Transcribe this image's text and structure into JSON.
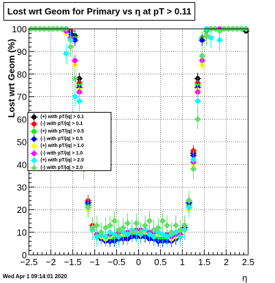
{
  "chart_data": {
    "type": "scatter",
    "title": "Lost wrt Geom for Primary vs η at pT > 0.11",
    "xlabel": "η",
    "ylabel": "Lost wrt Geom (%)",
    "xlim": [
      -2.5,
      2.5
    ],
    "ylim": [
      0,
      100
    ],
    "x_ticks": [
      "−2.5",
      "−2",
      "−1.5",
      "−1",
      "−0.5",
      "0",
      "0.5",
      "1",
      "1.5",
      "2",
      "2.5"
    ],
    "y_ticks": [
      "0",
      "10",
      "20",
      "30",
      "40",
      "50",
      "60",
      "70",
      "80",
      "90",
      "100"
    ],
    "grid": true,
    "legend_position": "middle-left",
    "eta": [
      -2.45,
      -2.35,
      -2.25,
      -2.15,
      -2.05,
      -1.95,
      -1.85,
      -1.75,
      -1.65,
      -1.55,
      -1.45,
      -1.35,
      -1.25,
      -1.15,
      -1.05,
      -0.95,
      -0.85,
      -0.75,
      -0.65,
      -0.55,
      -0.45,
      -0.35,
      -0.25,
      -0.15,
      -0.05,
      0.05,
      0.15,
      0.25,
      0.35,
      0.45,
      0.55,
      0.65,
      0.75,
      0.85,
      0.95,
      1.05,
      1.15,
      1.25,
      1.35,
      1.45,
      1.55,
      1.65,
      1.75,
      1.85,
      1.95,
      2.05,
      2.15,
      2.25,
      2.35,
      2.45
    ],
    "series": [
      {
        "name": "(+) with pT/|q| > 0.1",
        "color": "#000000",
        "marker": "circle",
        "values": [
          100,
          100,
          100,
          100,
          100,
          100,
          100,
          100,
          100,
          99,
          97,
          78,
          45,
          23,
          12,
          9,
          8,
          7,
          7,
          7,
          8,
          8,
          8,
          9,
          9,
          9,
          9,
          8,
          8,
          7,
          7,
          7,
          7,
          8,
          9,
          12,
          23,
          45,
          78,
          95,
          100,
          100,
          100,
          100,
          100,
          100,
          100,
          100,
          100,
          99
        ]
      },
      {
        "name": "(-) with pT/|q| > 0.1",
        "color": "#ff0000",
        "marker": "circle",
        "values": [
          100,
          100,
          100,
          100,
          100,
          100,
          100,
          100,
          100,
          99,
          96,
          76,
          46,
          24,
          13,
          9,
          8,
          7,
          7,
          7,
          8,
          8,
          8,
          9,
          9,
          9,
          9,
          8,
          8,
          7,
          7,
          7,
          7,
          8,
          9,
          13,
          24,
          46,
          76,
          96,
          100,
          100,
          100,
          100,
          100,
          100,
          100,
          100,
          100,
          100
        ]
      },
      {
        "name": "(+) with pT/|q| > 0.5",
        "color": "#00ee00",
        "marker": "circle",
        "values": [
          100,
          100,
          100,
          100,
          100,
          100,
          100,
          100,
          100,
          98,
          96,
          75,
          44,
          22,
          12,
          9,
          8,
          7,
          7,
          7,
          7,
          8,
          8,
          8,
          9,
          9,
          8,
          8,
          7,
          7,
          7,
          7,
          7,
          8,
          9,
          12,
          22,
          44,
          75,
          96,
          99,
          100,
          100,
          100,
          100,
          100,
          100,
          100,
          100,
          100
        ]
      },
      {
        "name": "(-) with pT/|q| > 0.5",
        "color": "#0000ff",
        "marker": "circle",
        "values": [
          100,
          100,
          100,
          100,
          100,
          100,
          100,
          100,
          100,
          98,
          95,
          74,
          44,
          23,
          12,
          8,
          7,
          6,
          6,
          6,
          7,
          7,
          7,
          8,
          8,
          8,
          8,
          7,
          7,
          6,
          6,
          6,
          6,
          7,
          8,
          12,
          23,
          44,
          74,
          95,
          100,
          100,
          100,
          100,
          100,
          100,
          100,
          100,
          100,
          100
        ]
      },
      {
        "name": "(+) with pT/|q| > 1.0",
        "color": "#ffff00",
        "marker": "circle",
        "values": [
          100,
          100,
          100,
          100,
          100,
          100,
          100,
          100,
          98,
          95,
          84,
          73,
          40,
          20,
          11,
          9,
          8,
          7,
          8,
          9,
          9,
          9,
          10,
          10,
          10,
          10,
          10,
          10,
          9,
          9,
          9,
          8,
          7,
          8,
          9,
          11,
          20,
          40,
          73,
          84,
          96,
          100,
          100,
          100,
          100,
          100,
          100,
          100,
          100,
          100
        ]
      },
      {
        "name": "(-) with pT/|q| > 1.0",
        "color": "#ff00ff",
        "marker": "circle",
        "values": [
          100,
          100,
          100,
          100,
          100,
          100,
          100,
          100,
          99,
          96,
          86,
          72,
          41,
          21,
          11,
          9,
          9,
          8,
          9,
          9,
          10,
          10,
          10,
          11,
          11,
          11,
          11,
          10,
          10,
          10,
          9,
          9,
          8,
          9,
          9,
          11,
          21,
          41,
          72,
          86,
          97,
          100,
          100,
          100,
          100,
          100,
          100,
          100,
          100,
          100
        ]
      },
      {
        "name": "(+) with pT/|q| > 2.0",
        "color": "#00ffff",
        "marker": "circle",
        "values": [
          100,
          100,
          100,
          100,
          100,
          100,
          100,
          100,
          89,
          95,
          70,
          68,
          42,
          21,
          11,
          8,
          9,
          8,
          10,
          9,
          8,
          10,
          9,
          11,
          10,
          9,
          11,
          9,
          8,
          10,
          9,
          8,
          9,
          10,
          8,
          11,
          21,
          42,
          68,
          88,
          100,
          96,
          100,
          95,
          100,
          100,
          100,
          100,
          100,
          100
        ]
      },
      {
        "name": "(-) with pT/|q| > 2.0",
        "color": "#66dd66",
        "marker": "diamond",
        "values": [
          100,
          100,
          100,
          100,
          100,
          100,
          100,
          100,
          100,
          92,
          78,
          58,
          38,
          21,
          12,
          13,
          10,
          12,
          13,
          15,
          11,
          12,
          14,
          10,
          14,
          10,
          13,
          15,
          11,
          12,
          15,
          13,
          10,
          13,
          11,
          13,
          24,
          38,
          60,
          88,
          97,
          100,
          100,
          99,
          100,
          100,
          100,
          100,
          100,
          100
        ]
      }
    ]
  },
  "footer_timestamp": "Wed Apr  1 09:14:01 2020"
}
